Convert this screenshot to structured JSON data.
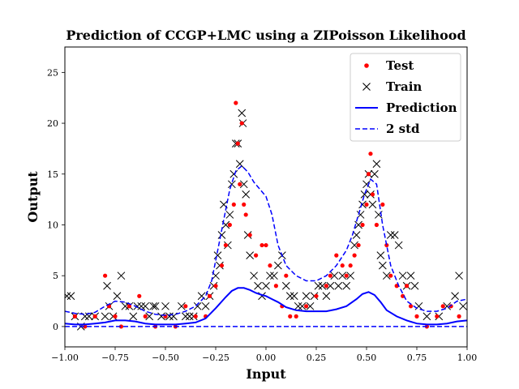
{
  "chart_data": {
    "type": "scatter",
    "title": "Prediction of CCGP+LMC using a ZIPoisson Likelihood",
    "xlabel": "Input",
    "ylabel": "Output",
    "xlim": [
      -1.0,
      1.0
    ],
    "ylim": [
      -2.0,
      27.5
    ],
    "xticks": [
      -1.0,
      -0.75,
      -0.5,
      -0.25,
      0.0,
      0.25,
      0.5,
      0.75,
      1.0
    ],
    "xtick_labels": [
      "−1.00",
      "−0.75",
      "−0.50",
      "−0.25",
      "0.00",
      "0.25",
      "0.50",
      "0.75",
      "1.00"
    ],
    "yticks": [
      0,
      5,
      10,
      15,
      20,
      25
    ],
    "ytick_labels": [
      "0",
      "5",
      "10",
      "15",
      "20",
      "25"
    ],
    "grid": false,
    "legend_position": "top-right",
    "colors": {
      "test": "#ff0000",
      "train": "#000000",
      "prediction": "#0000ff",
      "std": "#0000ff"
    },
    "series": [
      {
        "name": "Test",
        "marker": "dot",
        "points": [
          [
            -0.95,
            1
          ],
          [
            -0.9,
            0
          ],
          [
            -0.85,
            1
          ],
          [
            -0.8,
            5
          ],
          [
            -0.78,
            2
          ],
          [
            -0.75,
            1
          ],
          [
            -0.72,
            0
          ],
          [
            -0.68,
            2
          ],
          [
            -0.63,
            3
          ],
          [
            -0.6,
            1
          ],
          [
            -0.55,
            0
          ],
          [
            -0.5,
            1
          ],
          [
            -0.45,
            0
          ],
          [
            -0.4,
            2
          ],
          [
            -0.35,
            1
          ],
          [
            -0.3,
            1
          ],
          [
            -0.28,
            3
          ],
          [
            -0.25,
            4
          ],
          [
            -0.22,
            6
          ],
          [
            -0.2,
            8
          ],
          [
            -0.18,
            10
          ],
          [
            -0.16,
            12
          ],
          [
            -0.15,
            22
          ],
          [
            -0.14,
            18
          ],
          [
            -0.13,
            14
          ],
          [
            -0.12,
            20
          ],
          [
            -0.11,
            12
          ],
          [
            -0.1,
            11
          ],
          [
            -0.08,
            9
          ],
          [
            -0.05,
            7
          ],
          [
            -0.02,
            8
          ],
          [
            0.0,
            8
          ],
          [
            0.02,
            6
          ],
          [
            0.05,
            4
          ],
          [
            0.08,
            2
          ],
          [
            0.1,
            5
          ],
          [
            0.12,
            1
          ],
          [
            0.15,
            1
          ],
          [
            0.2,
            2
          ],
          [
            0.25,
            3
          ],
          [
            0.3,
            4
          ],
          [
            0.32,
            5
          ],
          [
            0.35,
            7
          ],
          [
            0.38,
            6
          ],
          [
            0.4,
            5
          ],
          [
            0.42,
            6
          ],
          [
            0.44,
            7
          ],
          [
            0.46,
            8
          ],
          [
            0.48,
            10
          ],
          [
            0.5,
            12
          ],
          [
            0.51,
            15
          ],
          [
            0.52,
            17
          ],
          [
            0.53,
            13
          ],
          [
            0.55,
            10
          ],
          [
            0.58,
            12
          ],
          [
            0.6,
            8
          ],
          [
            0.62,
            5
          ],
          [
            0.65,
            4
          ],
          [
            0.68,
            3
          ],
          [
            0.7,
            4
          ],
          [
            0.72,
            2
          ],
          [
            0.75,
            1
          ],
          [
            0.8,
            0
          ],
          [
            0.85,
            1
          ],
          [
            0.88,
            2
          ],
          [
            0.92,
            2
          ],
          [
            0.96,
            1
          ]
        ]
      },
      {
        "name": "Train",
        "marker": "x",
        "points": [
          [
            -0.99,
            3
          ],
          [
            -0.97,
            3
          ],
          [
            -0.95,
            1
          ],
          [
            -0.92,
            0
          ],
          [
            -0.9,
            1
          ],
          [
            -0.88,
            1
          ],
          [
            -0.85,
            1
          ],
          [
            -0.8,
            1
          ],
          [
            -0.79,
            4
          ],
          [
            -0.78,
            2
          ],
          [
            -0.76,
            1
          ],
          [
            -0.74,
            3
          ],
          [
            -0.72,
            5
          ],
          [
            -0.7,
            2
          ],
          [
            -0.68,
            2
          ],
          [
            -0.66,
            1
          ],
          [
            -0.64,
            2
          ],
          [
            -0.62,
            2
          ],
          [
            -0.6,
            2
          ],
          [
            -0.58,
            1
          ],
          [
            -0.56,
            2
          ],
          [
            -0.55,
            2
          ],
          [
            -0.52,
            1
          ],
          [
            -0.5,
            2
          ],
          [
            -0.48,
            1
          ],
          [
            -0.46,
            1
          ],
          [
            -0.42,
            2
          ],
          [
            -0.4,
            1
          ],
          [
            -0.38,
            1
          ],
          [
            -0.36,
            1
          ],
          [
            -0.34,
            2
          ],
          [
            -0.32,
            3
          ],
          [
            -0.3,
            2
          ],
          [
            -0.28,
            3
          ],
          [
            -0.26,
            4
          ],
          [
            -0.25,
            5
          ],
          [
            -0.24,
            7
          ],
          [
            -0.23,
            6
          ],
          [
            -0.22,
            9
          ],
          [
            -0.21,
            12
          ],
          [
            -0.2,
            10
          ],
          [
            -0.19,
            8
          ],
          [
            -0.18,
            11
          ],
          [
            -0.17,
            14
          ],
          [
            -0.16,
            15
          ],
          [
            -0.15,
            18
          ],
          [
            -0.14,
            18
          ],
          [
            -0.13,
            16
          ],
          [
            -0.12,
            21
          ],
          [
            -0.115,
            20
          ],
          [
            -0.11,
            14
          ],
          [
            -0.1,
            13
          ],
          [
            -0.09,
            9
          ],
          [
            -0.08,
            7
          ],
          [
            -0.06,
            5
          ],
          [
            -0.04,
            4
          ],
          [
            -0.02,
            3
          ],
          [
            0.0,
            4
          ],
          [
            0.02,
            5
          ],
          [
            0.04,
            5
          ],
          [
            0.06,
            6
          ],
          [
            0.08,
            7
          ],
          [
            0.1,
            4
          ],
          [
            0.12,
            3
          ],
          [
            0.14,
            3
          ],
          [
            0.16,
            2
          ],
          [
            0.18,
            2
          ],
          [
            0.2,
            3
          ],
          [
            0.22,
            2
          ],
          [
            0.24,
            3
          ],
          [
            0.26,
            4
          ],
          [
            0.28,
            4
          ],
          [
            0.3,
            3
          ],
          [
            0.32,
            4
          ],
          [
            0.34,
            5
          ],
          [
            0.36,
            4
          ],
          [
            0.38,
            5
          ],
          [
            0.4,
            4
          ],
          [
            0.42,
            5
          ],
          [
            0.44,
            8
          ],
          [
            0.45,
            9
          ],
          [
            0.46,
            10
          ],
          [
            0.47,
            11
          ],
          [
            0.48,
            12
          ],
          [
            0.49,
            13
          ],
          [
            0.5,
            14
          ],
          [
            0.51,
            15
          ],
          [
            0.52,
            13
          ],
          [
            0.53,
            12
          ],
          [
            0.54,
            15
          ],
          [
            0.55,
            16
          ],
          [
            0.56,
            11
          ],
          [
            0.57,
            7
          ],
          [
            0.58,
            6
          ],
          [
            0.6,
            5
          ],
          [
            0.62,
            9
          ],
          [
            0.64,
            9
          ],
          [
            0.66,
            8
          ],
          [
            0.68,
            5
          ],
          [
            0.7,
            4
          ],
          [
            0.72,
            5
          ],
          [
            0.74,
            4
          ],
          [
            0.76,
            2
          ],
          [
            0.8,
            1
          ],
          [
            0.86,
            1
          ],
          [
            0.9,
            2
          ],
          [
            0.94,
            3
          ],
          [
            0.96,
            5
          ],
          [
            0.98,
            2
          ]
        ]
      },
      {
        "name": "Prediction",
        "line": "solid",
        "x": [
          -1.0,
          -0.95,
          -0.9,
          -0.85,
          -0.8,
          -0.75,
          -0.7,
          -0.65,
          -0.6,
          -0.55,
          -0.5,
          -0.45,
          -0.4,
          -0.35,
          -0.3,
          -0.25,
          -0.2,
          -0.17,
          -0.14,
          -0.11,
          -0.08,
          -0.05,
          -0.02,
          0.0,
          0.03,
          0.06,
          0.1,
          0.15,
          0.2,
          0.25,
          0.3,
          0.35,
          0.4,
          0.45,
          0.48,
          0.51,
          0.54,
          0.57,
          0.6,
          0.65,
          0.7,
          0.75,
          0.8,
          0.85,
          0.9,
          0.95,
          1.0
        ],
        "values": [
          0.3,
          0.2,
          0.2,
          0.3,
          0.4,
          0.6,
          0.6,
          0.5,
          0.3,
          0.2,
          0.2,
          0.2,
          0.3,
          0.4,
          0.8,
          1.8,
          2.9,
          3.5,
          3.8,
          3.8,
          3.6,
          3.3,
          3.1,
          3.0,
          2.7,
          2.4,
          1.9,
          1.6,
          1.5,
          1.5,
          1.5,
          1.7,
          2.0,
          2.7,
          3.2,
          3.4,
          3.1,
          2.4,
          1.6,
          1.0,
          0.6,
          0.3,
          0.2,
          0.2,
          0.3,
          0.5,
          0.6
        ]
      },
      {
        "name": "2 std",
        "line": "dashed",
        "x": [
          -1.0,
          -0.95,
          -0.9,
          -0.85,
          -0.8,
          -0.75,
          -0.7,
          -0.65,
          -0.6,
          -0.55,
          -0.5,
          -0.45,
          -0.4,
          -0.35,
          -0.3,
          -0.27,
          -0.24,
          -0.21,
          -0.18,
          -0.15,
          -0.12,
          -0.09,
          -0.06,
          -0.03,
          0.0,
          0.03,
          0.06,
          0.1,
          0.15,
          0.2,
          0.25,
          0.3,
          0.35,
          0.4,
          0.43,
          0.46,
          0.49,
          0.52,
          0.55,
          0.58,
          0.62,
          0.66,
          0.7,
          0.75,
          0.8,
          0.85,
          0.9,
          0.95,
          1.0
        ],
        "values": [
          1.5,
          1.3,
          1.2,
          1.4,
          2.0,
          2.5,
          2.4,
          2.0,
          1.5,
          1.2,
          1.1,
          1.2,
          1.5,
          2.0,
          3.0,
          4.5,
          7.5,
          10.5,
          13.5,
          15.3,
          15.8,
          15.2,
          14.2,
          13.5,
          12.8,
          11.0,
          8.0,
          6.0,
          5.0,
          4.5,
          4.5,
          5.0,
          6.0,
          7.5,
          9.0,
          11.0,
          13.0,
          14.5,
          14.0,
          10.0,
          6.0,
          4.0,
          2.5,
          1.8,
          1.5,
          1.5,
          1.8,
          2.5,
          2.7
        ]
      },
      {
        "name": "2 std",
        "line": "dashed",
        "x": [
          -1.0,
          1.0
        ],
        "values": [
          0.0,
          0.0
        ]
      }
    ]
  }
}
